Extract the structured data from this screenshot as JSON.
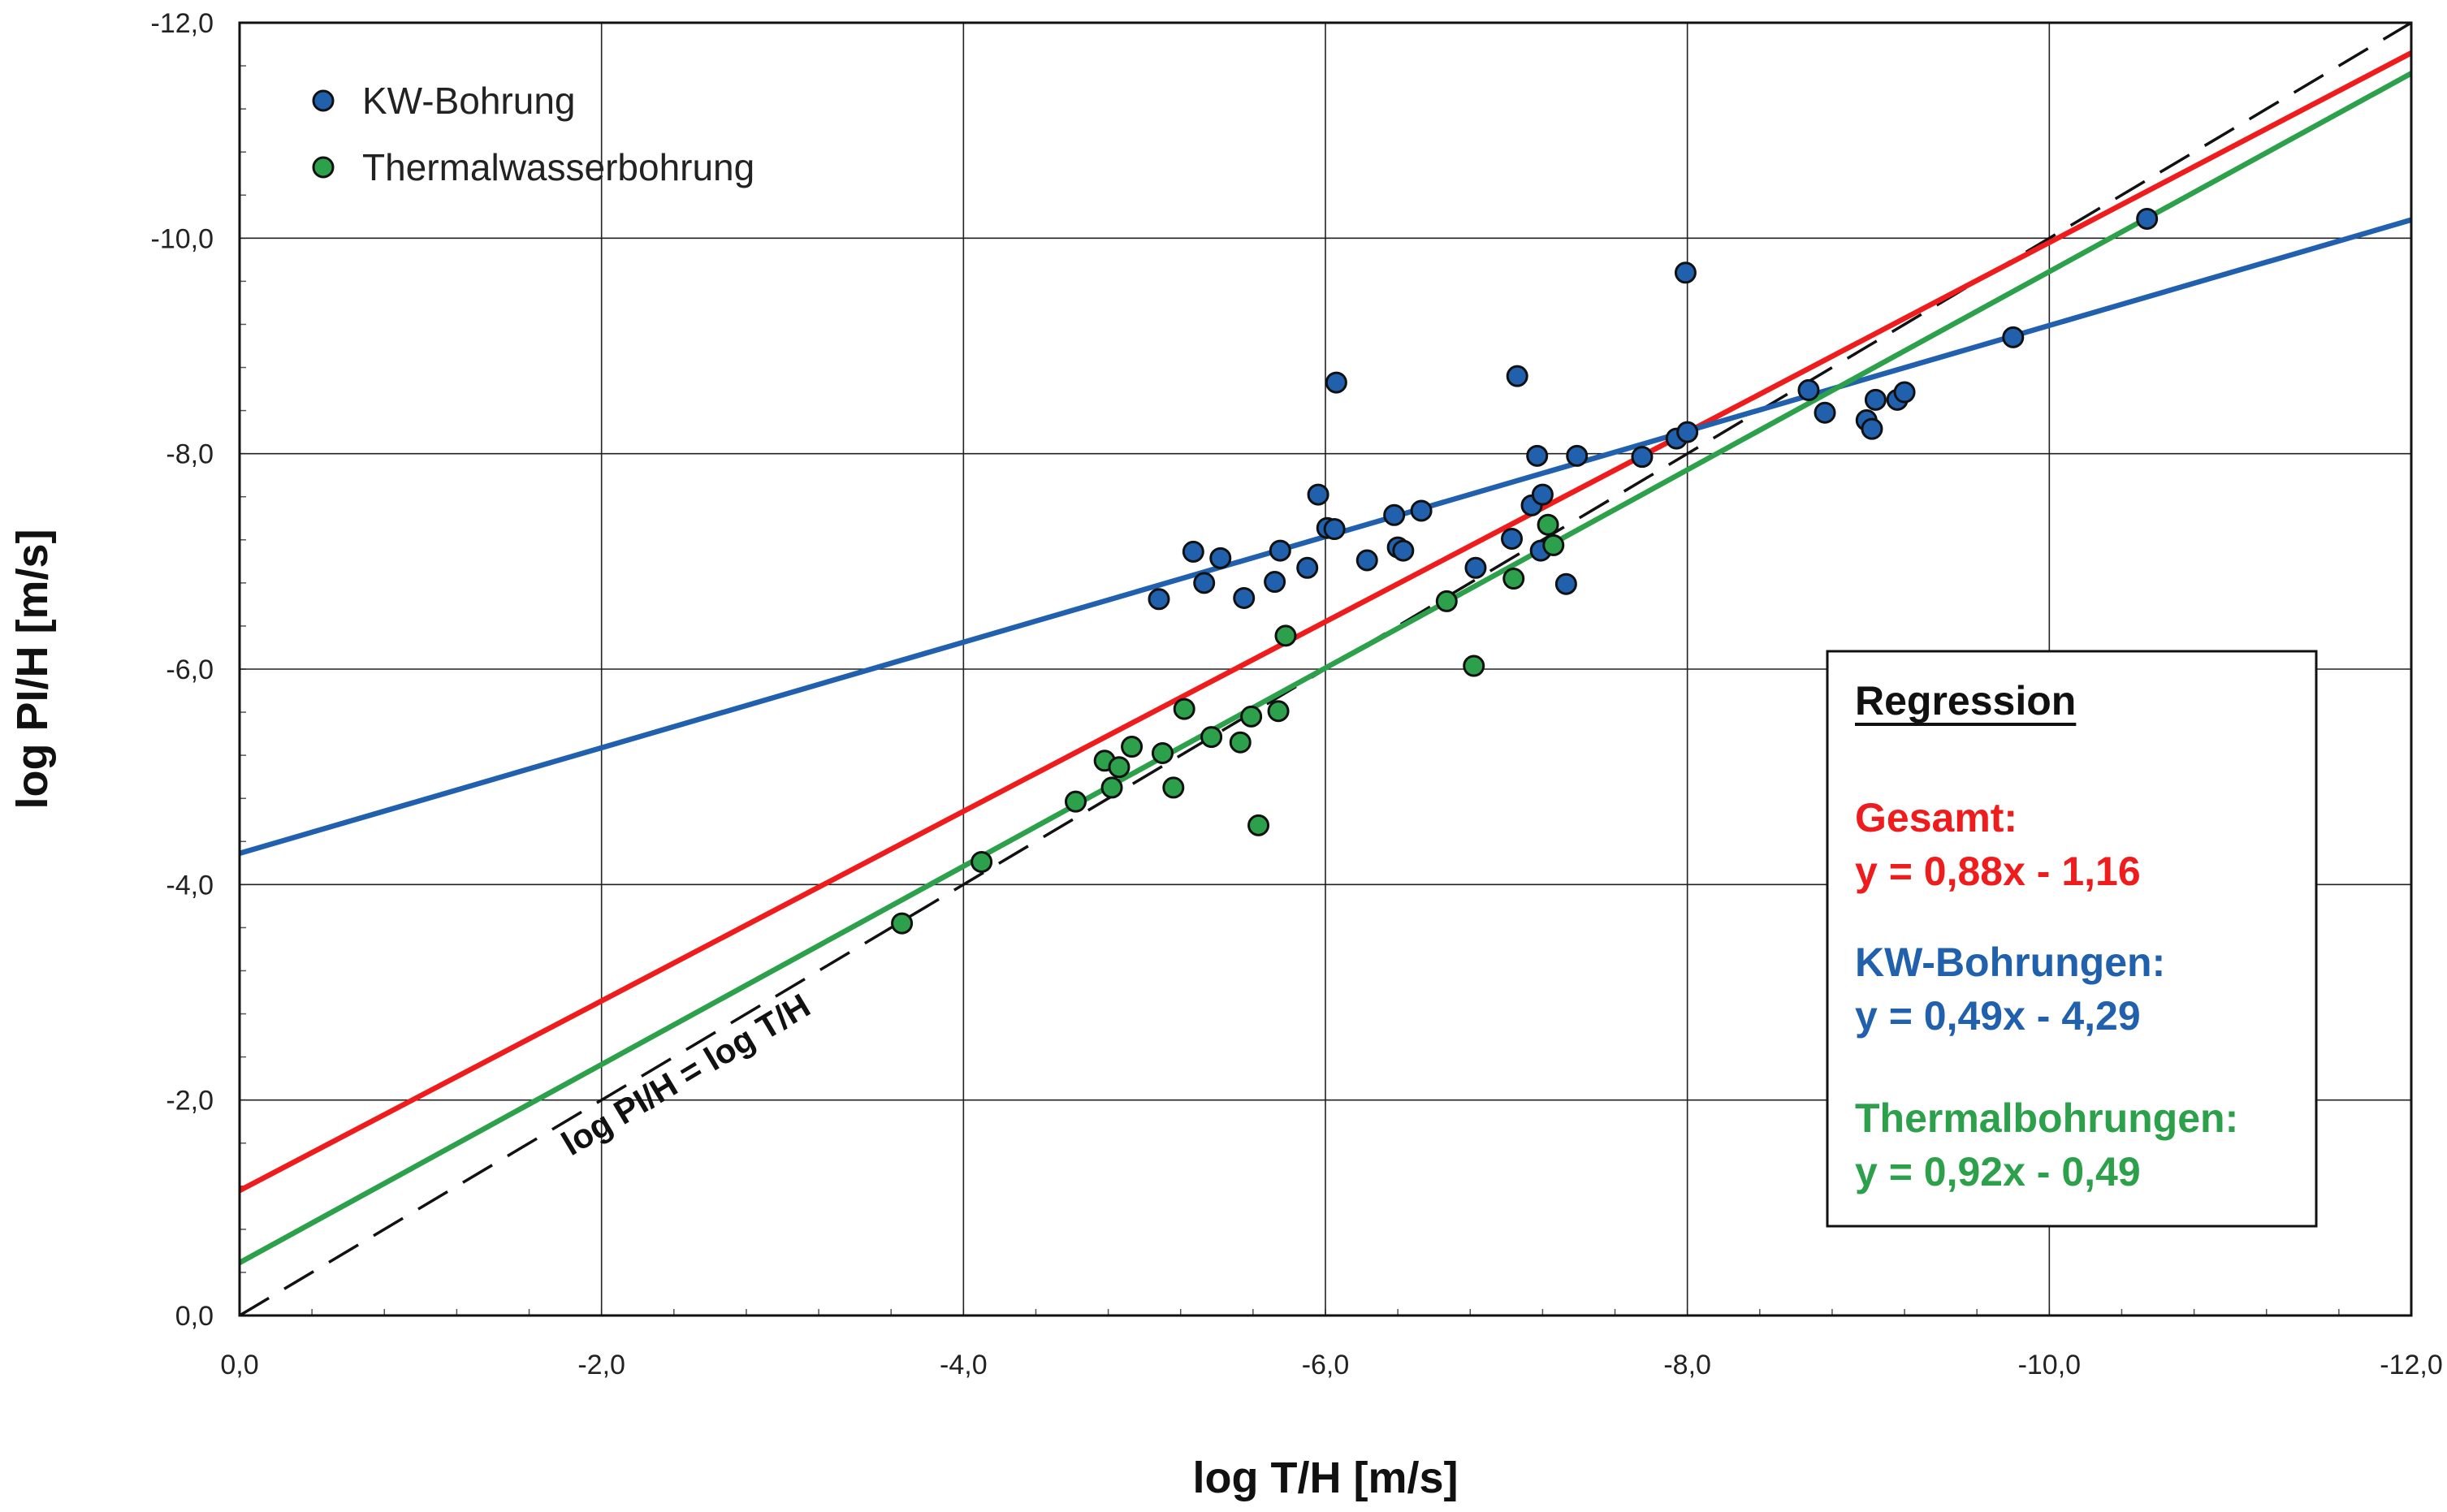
{
  "chart_data": {
    "type": "scatter",
    "xlabel": "log T/H [m/s]",
    "ylabel": "log PI/H [m/s]",
    "xlim": [
      0,
      -12
    ],
    "ylim": [
      0,
      -12
    ],
    "xticks": [
      "0,0",
      "-2,0",
      "-4,0",
      "-6,0",
      "-8,0",
      "-10,0",
      "-12,0"
    ],
    "yticks": [
      "0,0",
      "-2,0",
      "-4,0",
      "-6,0",
      "-8,0",
      "-10,0",
      "-12,0"
    ],
    "grid": true,
    "legend_position": "top-left",
    "series": [
      {
        "name": "KW-Bohrung",
        "color": "#2060ad",
        "points": [
          [
            -5.08,
            -6.65
          ],
          [
            -5.27,
            -7.09
          ],
          [
            -5.33,
            -6.8
          ],
          [
            -5.42,
            -7.03
          ],
          [
            -5.55,
            -6.66
          ],
          [
            -5.72,
            -6.81
          ],
          [
            -5.75,
            -7.1
          ],
          [
            -5.9,
            -6.94
          ],
          [
            -5.96,
            -7.62
          ],
          [
            -6.01,
            -7.31
          ],
          [
            -6.05,
            -7.3
          ],
          [
            -6.06,
            -8.66
          ],
          [
            -6.23,
            -7.01
          ],
          [
            -6.38,
            -7.43
          ],
          [
            -6.4,
            -7.13
          ],
          [
            -6.43,
            -7.1
          ],
          [
            -6.53,
            -7.47
          ],
          [
            -6.83,
            -6.94
          ],
          [
            -7.03,
            -7.21
          ],
          [
            -7.06,
            -8.72
          ],
          [
            -7.14,
            -7.52
          ],
          [
            -7.17,
            -7.98
          ],
          [
            -7.19,
            -7.1
          ],
          [
            -7.2,
            -7.62
          ],
          [
            -7.33,
            -6.79
          ],
          [
            -7.39,
            -7.98
          ],
          [
            -7.75,
            -7.97
          ],
          [
            -7.94,
            -8.14
          ],
          [
            -8.0,
            -8.2
          ],
          [
            -7.99,
            -9.68
          ],
          [
            -8.67,
            -8.59
          ],
          [
            -8.76,
            -8.38
          ],
          [
            -8.99,
            -8.31
          ],
          [
            -9.02,
            -8.23
          ],
          [
            -9.04,
            -8.5
          ],
          [
            -9.16,
            -8.5
          ],
          [
            -9.2,
            -8.57
          ],
          [
            -9.8,
            -9.08
          ],
          [
            -10.54,
            -10.18
          ]
        ]
      },
      {
        "name": "Thermalwasserbohrung",
        "color": "#2ca04a",
        "points": [
          [
            -3.66,
            -3.64
          ],
          [
            -4.1,
            -4.21
          ],
          [
            -4.62,
            -4.77
          ],
          [
            -4.78,
            -5.15
          ],
          [
            -4.82,
            -4.9
          ],
          [
            -4.86,
            -5.09
          ],
          [
            -4.93,
            -5.28
          ],
          [
            -5.1,
            -5.22
          ],
          [
            -5.16,
            -4.9
          ],
          [
            -5.22,
            -5.63
          ],
          [
            -5.37,
            -5.37
          ],
          [
            -5.53,
            -5.32
          ],
          [
            -5.59,
            -5.56
          ],
          [
            -5.63,
            -4.55
          ],
          [
            -5.74,
            -5.61
          ],
          [
            -5.78,
            -6.31
          ],
          [
            -6.67,
            -6.63
          ],
          [
            -6.82,
            -6.03
          ],
          [
            -7.04,
            -6.84
          ],
          [
            -7.23,
            -7.34
          ],
          [
            -7.26,
            -7.15
          ]
        ]
      }
    ],
    "regression_lines": [
      {
        "color": "#ee1c1c",
        "slope": 0.88,
        "intercept": -1.16
      },
      {
        "color": "#2060ad",
        "slope": 0.49,
        "intercept": -4.29
      },
      {
        "color": "#2ca04a",
        "slope": 0.92,
        "intercept": -0.49
      }
    ],
    "reference_line": {
      "label": "log PI/H = log T/H",
      "slope": 1,
      "intercept": 0
    },
    "regression_box": {
      "title": "Regression",
      "entries": [
        {
          "name": "Gesamt:",
          "equation": "y = 0,88x - 1,16",
          "color": "#ee1c1c"
        },
        {
          "name": "KW-Bohrungen:",
          "equation": "y = 0,49x - 4,29",
          "color": "#2060ad"
        },
        {
          "name": "Thermalbohrungen:",
          "equation": "y = 0,92x - 0,49",
          "color": "#2ca04a"
        }
      ]
    }
  }
}
